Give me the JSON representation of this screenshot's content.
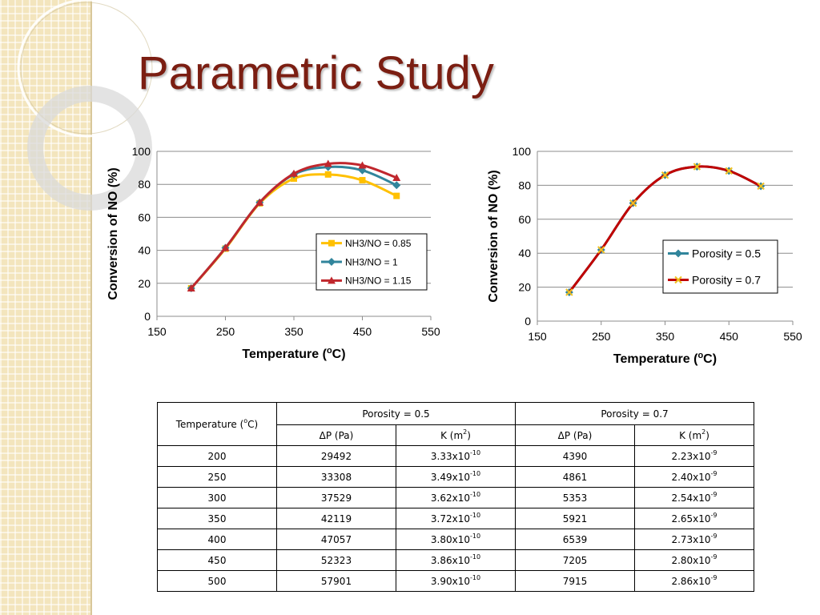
{
  "slide": {
    "title": "Parametric Study",
    "colors": {
      "title": "#7b1e12",
      "sidebar": "#f3e5bd"
    }
  },
  "chart_data": [
    {
      "type": "line",
      "x": [
        200,
        250,
        300,
        350,
        400,
        450,
        500
      ],
      "series": [
        {
          "name": "NH3/NO = 0.85",
          "values": [
            17,
            41,
            68.5,
            83.5,
            86,
            82.5,
            73
          ],
          "color": "#ffc000",
          "marker": "square"
        },
        {
          "name": "NH3/NO = 1",
          "values": [
            17,
            41.5,
            69,
            86,
            90.5,
            88.5,
            79.5
          ],
          "color": "#31859c",
          "marker": "diamond"
        },
        {
          "name": "NH3/NO = 1.15",
          "values": [
            17,
            41.5,
            69,
            86.5,
            92.5,
            91.5,
            84
          ],
          "color": "#c0272d",
          "marker": "triangle"
        }
      ],
      "xlabel": "Temperature (oC)",
      "ylabel": "Conversion of NO (%)",
      "xlim": [
        150,
        550
      ],
      "ylim": [
        0,
        100
      ],
      "xticks": [
        150,
        250,
        350,
        450,
        550
      ],
      "yticks": [
        0,
        20,
        40,
        60,
        80,
        100
      ],
      "grid": true,
      "legend": "right"
    },
    {
      "type": "line",
      "x": [
        200,
        250,
        300,
        350,
        400,
        450,
        500
      ],
      "series": [
        {
          "name": "Porosity = 0.5",
          "values": [
            17,
            42,
            69.5,
            86,
            91,
            88.5,
            79.5
          ],
          "color": "#31859c",
          "marker": "diamond"
        },
        {
          "name": "Porosity = 0.7",
          "values": [
            17,
            42,
            69.5,
            86,
            91,
            88.5,
            79.5
          ],
          "color": "#c00000",
          "marker": "x"
        }
      ],
      "xlabel": "Temperature (oC)",
      "ylabel": "Conversion of NO (%)",
      "xlim": [
        150,
        550
      ],
      "ylim": [
        0,
        100
      ],
      "xticks": [
        150,
        250,
        350,
        450,
        550
      ],
      "yticks": [
        0,
        20,
        40,
        60,
        80,
        100
      ],
      "grid": true,
      "legend": "right"
    }
  ],
  "table": {
    "temp_header": "Temperature (",
    "temp_header_sup": "o",
    "temp_header_end": "C)",
    "group1": "Porosity = 0.5",
    "group2": "Porosity = 0.7",
    "dp_label": "ΔP (Pa)",
    "k_label": "K (m",
    "k_sup": "2",
    "k_end": ")",
    "rows": [
      {
        "t": "200",
        "dp1": "29492",
        "k1": "3.33x10",
        "k1e": "-10",
        "dp2": "4390",
        "k2": "2.23x10",
        "k2e": "-9"
      },
      {
        "t": "250",
        "dp1": "33308",
        "k1": "3.49x10",
        "k1e": "-10",
        "dp2": "4861",
        "k2": "2.40x10",
        "k2e": "-9"
      },
      {
        "t": "300",
        "dp1": "37529",
        "k1": "3.62x10",
        "k1e": "-10",
        "dp2": "5353",
        "k2": "2.54x10",
        "k2e": "-9"
      },
      {
        "t": "350",
        "dp1": "42119",
        "k1": "3.72x10",
        "k1e": "-10",
        "dp2": "5921",
        "k2": "2.65x10",
        "k2e": "-9"
      },
      {
        "t": "400",
        "dp1": "47057",
        "k1": "3.80x10",
        "k1e": "-10",
        "dp2": "6539",
        "k2": "2.73x10",
        "k2e": "-9"
      },
      {
        "t": "450",
        "dp1": "52323",
        "k1": "3.86x10",
        "k1e": "-10",
        "dp2": "7205",
        "k2": "2.80x10",
        "k2e": "-9"
      },
      {
        "t": "500",
        "dp1": "57901",
        "k1": "3.90x10",
        "k1e": "-10",
        "dp2": "7915",
        "k2": "2.86x10",
        "k2e": "-9"
      }
    ]
  }
}
